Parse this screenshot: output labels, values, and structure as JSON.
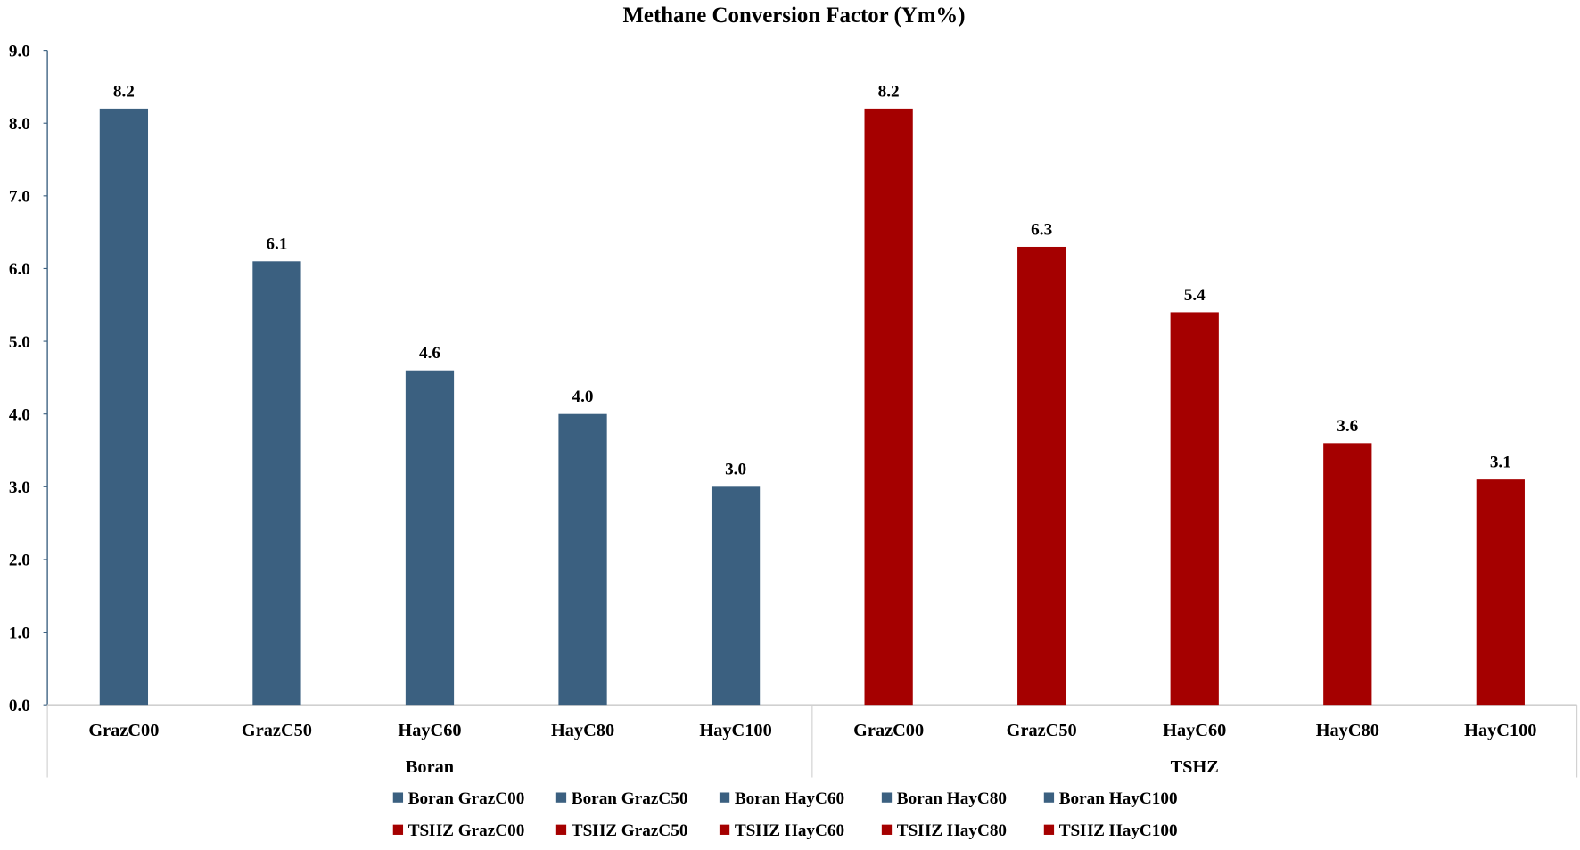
{
  "chart_data": {
    "type": "bar",
    "title": "Methane Conversion Factor (Ym%)",
    "xlabel": "",
    "ylabel": "",
    "ylim": [
      0,
      9
    ],
    "yticks": [
      "0.0",
      "1.0",
      "2.0",
      "3.0",
      "4.0",
      "5.0",
      "6.0",
      "7.0",
      "8.0",
      "9.0"
    ],
    "grid": false,
    "legend_position": "bottom",
    "groups": [
      {
        "name": "Boran",
        "color": "#3B6080",
        "categories": [
          "GrazC00",
          "GrazC50",
          "HayC60",
          "HayC80",
          "HayC100"
        ],
        "values": [
          8.2,
          6.1,
          4.6,
          4.0,
          3.0
        ],
        "labels": [
          "8.2",
          "6.1",
          "4.6",
          "4.0",
          "3.0"
        ]
      },
      {
        "name": "TSHZ",
        "color": "#A50000",
        "categories": [
          "GrazC00",
          "GrazC50",
          "HayC60",
          "HayC80",
          "HayC100"
        ],
        "values": [
          8.2,
          6.3,
          5.4,
          3.6,
          3.1
        ],
        "labels": [
          "8.2",
          "6.3",
          "5.4",
          "3.6",
          "3.1"
        ]
      }
    ],
    "legend": [
      [
        "Boran GrazC00",
        "Boran GrazC50",
        "Boran HayC60",
        "Boran HayC80",
        "Boran HayC100"
      ],
      [
        "TSHZ GrazC00",
        "TSHZ GrazC50",
        "TSHZ HayC60",
        "TSHZ HayC80",
        "TSHZ HayC100"
      ]
    ]
  }
}
